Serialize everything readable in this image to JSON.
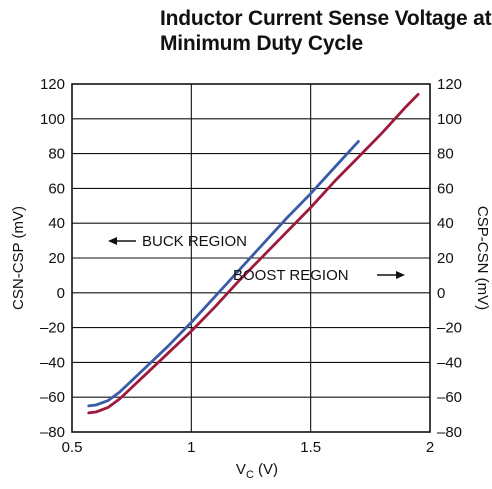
{
  "chart_data": {
    "type": "line",
    "title_line1": "Inductor Current Sense Voltage at",
    "title_line2": "Minimum Duty Cycle",
    "xlabel_main": "V",
    "xlabel_sub": "C",
    "xlabel_unit": " (V)",
    "ylabel_left": "CSN-CSP (mV)",
    "ylabel_right": "CSP-CSN (mV)",
    "xlim": [
      0.5,
      2
    ],
    "ylim": [
      -80,
      120
    ],
    "x_ticks": [
      0.5,
      1,
      1.5,
      2
    ],
    "x_tick_labels": [
      "0.5",
      "1",
      "1.5",
      "2"
    ],
    "y_ticks": [
      -80,
      -60,
      -40,
      -20,
      0,
      20,
      40,
      60,
      80,
      100,
      120
    ],
    "y_tick_labels": [
      "–80",
      "–60",
      "–40",
      "–20",
      "0",
      "20",
      "40",
      "60",
      "80",
      "100",
      "120"
    ],
    "grid": true,
    "annotations": {
      "buck": "BUCK REGION",
      "boost": "BOOST REGION"
    },
    "series": [
      {
        "color": "#3a5ba8",
        "x": [
          0.57,
          0.6,
          0.65,
          0.7,
          0.8,
          0.9,
          1.0,
          1.1,
          1.2,
          1.3,
          1.4,
          1.5,
          1.6,
          1.7
        ],
        "y": [
          -65,
          -64.5,
          -62,
          -57,
          -44,
          -31,
          -17,
          -2,
          13,
          28,
          43,
          57,
          72,
          87
        ]
      },
      {
        "color": "#9e1a3c",
        "x": [
          0.57,
          0.6,
          0.65,
          0.7,
          0.8,
          0.9,
          1.0,
          1.1,
          1.2,
          1.3,
          1.4,
          1.5,
          1.6,
          1.7,
          1.8,
          1.9,
          1.95
        ],
        "y": [
          -69,
          -68.5,
          -66,
          -61,
          -48,
          -35,
          -22,
          -8,
          7,
          21,
          35,
          49,
          64,
          78,
          92,
          107,
          114
        ]
      }
    ]
  }
}
